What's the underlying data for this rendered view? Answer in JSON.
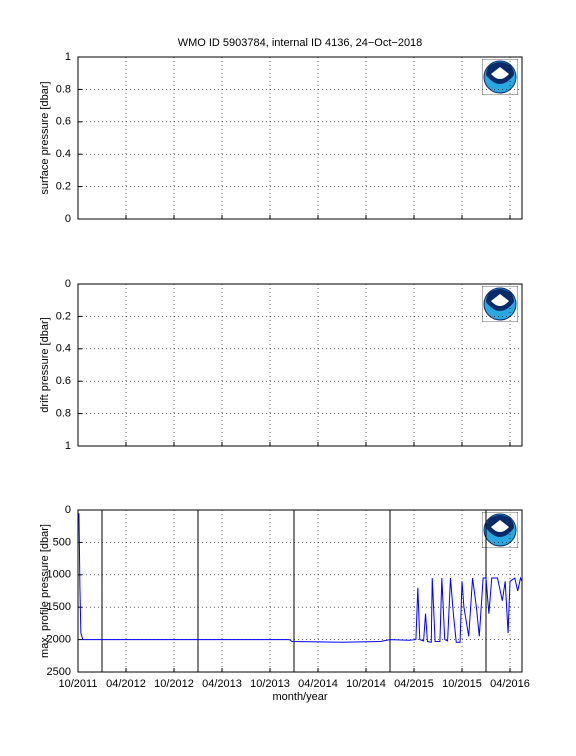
{
  "chart_data": [
    {
      "type": "line",
      "title": "WMO ID 5903784, internal ID 4136, 24−Oct−2018",
      "y_label": "surface pressure [dbar]",
      "xlim": [
        2011.75,
        2016.375
      ],
      "xticks": [
        {
          "value": 2011.75,
          "label": "10/2011"
        },
        {
          "value": 2012.25,
          "label": "04/2012"
        },
        {
          "value": 2012.75,
          "label": "10/2012"
        },
        {
          "value": 2013.25,
          "label": "04/2013"
        },
        {
          "value": 2013.75,
          "label": "10/2013"
        },
        {
          "value": 2014.25,
          "label": "04/2014"
        },
        {
          "value": 2014.75,
          "label": "10/2014"
        },
        {
          "value": 2015.25,
          "label": "04/2015"
        },
        {
          "value": 2015.75,
          "label": "10/2015"
        },
        {
          "value": 2016.25,
          "label": "04/2016"
        }
      ],
      "ylim": [
        0,
        1
      ],
      "yticks": [
        0,
        0.2,
        0.4,
        0.6,
        0.8,
        1
      ],
      "y_reversed": false,
      "grid": true,
      "show_xtick_labels": false,
      "series": []
    },
    {
      "type": "line",
      "y_label": "drift pressure [dbar]",
      "xlim": [
        2011.75,
        2016.375
      ],
      "xticks": [
        {
          "value": 2011.75,
          "label": "10/2011"
        },
        {
          "value": 2012.25,
          "label": "04/2012"
        },
        {
          "value": 2012.75,
          "label": "10/2012"
        },
        {
          "value": 2013.25,
          "label": "04/2013"
        },
        {
          "value": 2013.75,
          "label": "10/2013"
        },
        {
          "value": 2014.25,
          "label": "04/2014"
        },
        {
          "value": 2014.75,
          "label": "10/2014"
        },
        {
          "value": 2015.25,
          "label": "04/2015"
        },
        {
          "value": 2015.75,
          "label": "10/2015"
        },
        {
          "value": 2016.25,
          "label": "04/2016"
        }
      ],
      "ylim": [
        0,
        1
      ],
      "yticks": [
        0,
        0.2,
        0.4,
        0.6,
        0.8,
        1
      ],
      "y_reversed": true,
      "grid": true,
      "show_xtick_labels": false,
      "series": []
    },
    {
      "type": "line",
      "y_label": "max. profile pressure [dbar]",
      "x_label": "month/year",
      "xlim": [
        2011.75,
        2016.375
      ],
      "xticks": [
        {
          "value": 2011.75,
          "label": "10/2011"
        },
        {
          "value": 2012.25,
          "label": "04/2012"
        },
        {
          "value": 2012.75,
          "label": "10/2012"
        },
        {
          "value": 2013.25,
          "label": "04/2013"
        },
        {
          "value": 2013.75,
          "label": "10/2013"
        },
        {
          "value": 2014.25,
          "label": "04/2014"
        },
        {
          "value": 2014.75,
          "label": "10/2014"
        },
        {
          "value": 2015.25,
          "label": "04/2015"
        },
        {
          "value": 2015.75,
          "label": "10/2015"
        },
        {
          "value": 2016.25,
          "label": "04/2016"
        }
      ],
      "ylim": [
        0,
        2500
      ],
      "yticks": [
        0,
        500,
        1000,
        1500,
        2000,
        2500
      ],
      "y_reversed": true,
      "grid": true,
      "show_xtick_labels": true,
      "vlines": [
        2012,
        2013,
        2014,
        2015,
        2016
      ],
      "series": [
        {
          "color": "#0000ff",
          "x": [
            2011.76,
            2011.765,
            2011.77,
            2011.78,
            2011.8,
            2012.5,
            2013.95,
            2013.98,
            2014.5,
            2014.9,
            2015.0,
            2015.2,
            2015.27,
            2015.29,
            2015.31,
            2015.35,
            2015.37,
            2015.39,
            2015.43,
            2015.44,
            2015.47,
            2015.52,
            2015.54,
            2015.57,
            2015.6,
            2015.63,
            2015.66,
            2015.69,
            2015.73,
            2015.75,
            2015.77,
            2015.82,
            2015.86,
            2015.9,
            2015.93,
            2015.97,
            2016.0,
            2016.03,
            2016.06,
            2016.12,
            2016.17,
            2016.2,
            2016.23,
            2016.25,
            2016.3,
            2016.33,
            2016.36,
            2016.375
          ],
          "values": [
            50,
            600,
            1200,
            1900,
            2000,
            2000,
            2000,
            2030,
            2040,
            2030,
            2000,
            2010,
            2000,
            1200,
            2000,
            2020,
            1600,
            2030,
            2040,
            1050,
            2030,
            2030,
            1050,
            2000,
            2020,
            1050,
            1600,
            2040,
            2040,
            1100,
            1500,
            1950,
            1050,
            1500,
            1950,
            1050,
            1050,
            1600,
            1050,
            1050,
            1400,
            1100,
            1900,
            1100,
            1050,
            1250,
            1050,
            1100
          ]
        }
      ]
    }
  ]
}
